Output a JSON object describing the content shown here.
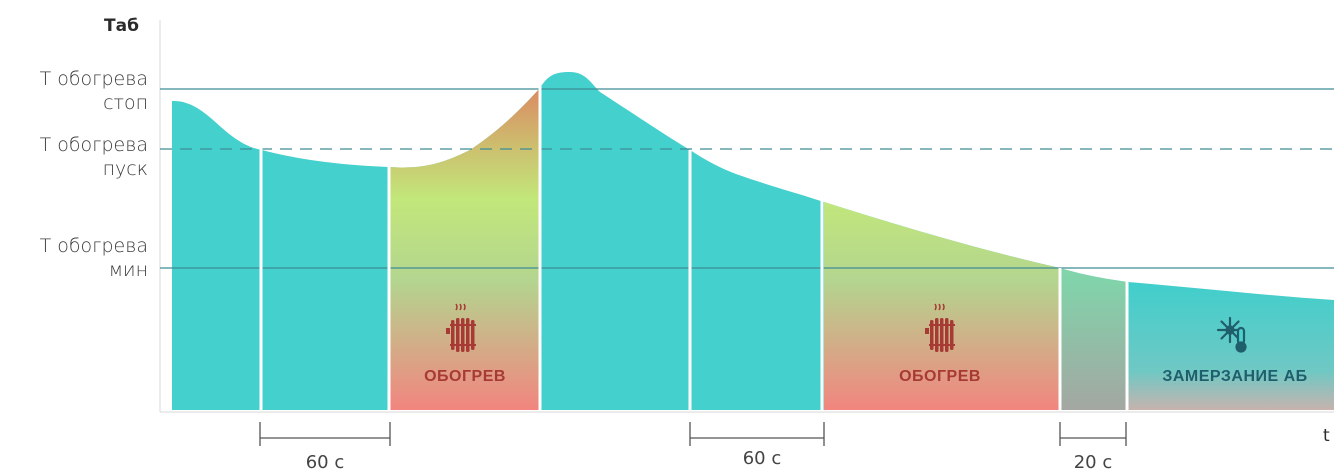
{
  "axes": {
    "y_label": "Таб",
    "x_label": "t"
  },
  "levels": {
    "stop": {
      "line1": "Т обогрева",
      "line2": "стоп"
    },
    "start": {
      "line1": "Т обогрева",
      "line2": "пуск"
    },
    "min": {
      "line1": "Т обогрева",
      "line2": "мин"
    }
  },
  "zones": {
    "heating_1": {
      "label": "ОБОГРЕВ",
      "icon": "radiator-icon"
    },
    "heating_2": {
      "label": "ОБОГРЕВ",
      "icon": "radiator-icon"
    },
    "freezing": {
      "label": "ЗАМЕРЗАНИЕ АБ",
      "icon": "snowflake-thermometer-icon"
    }
  },
  "intervals": {
    "first": "60 с",
    "second": "60 с",
    "third": "20 с"
  },
  "colors": {
    "level_line": "#3d8c95",
    "heating_zone": "#f08b86",
    "heating_text": "#a83a35",
    "freezing_zone": "#4fcfcf",
    "freezing_text": "#1f5e6b",
    "green": "#bfe97a",
    "warm": "#d9a36b",
    "teal": "#46d1c8"
  }
}
